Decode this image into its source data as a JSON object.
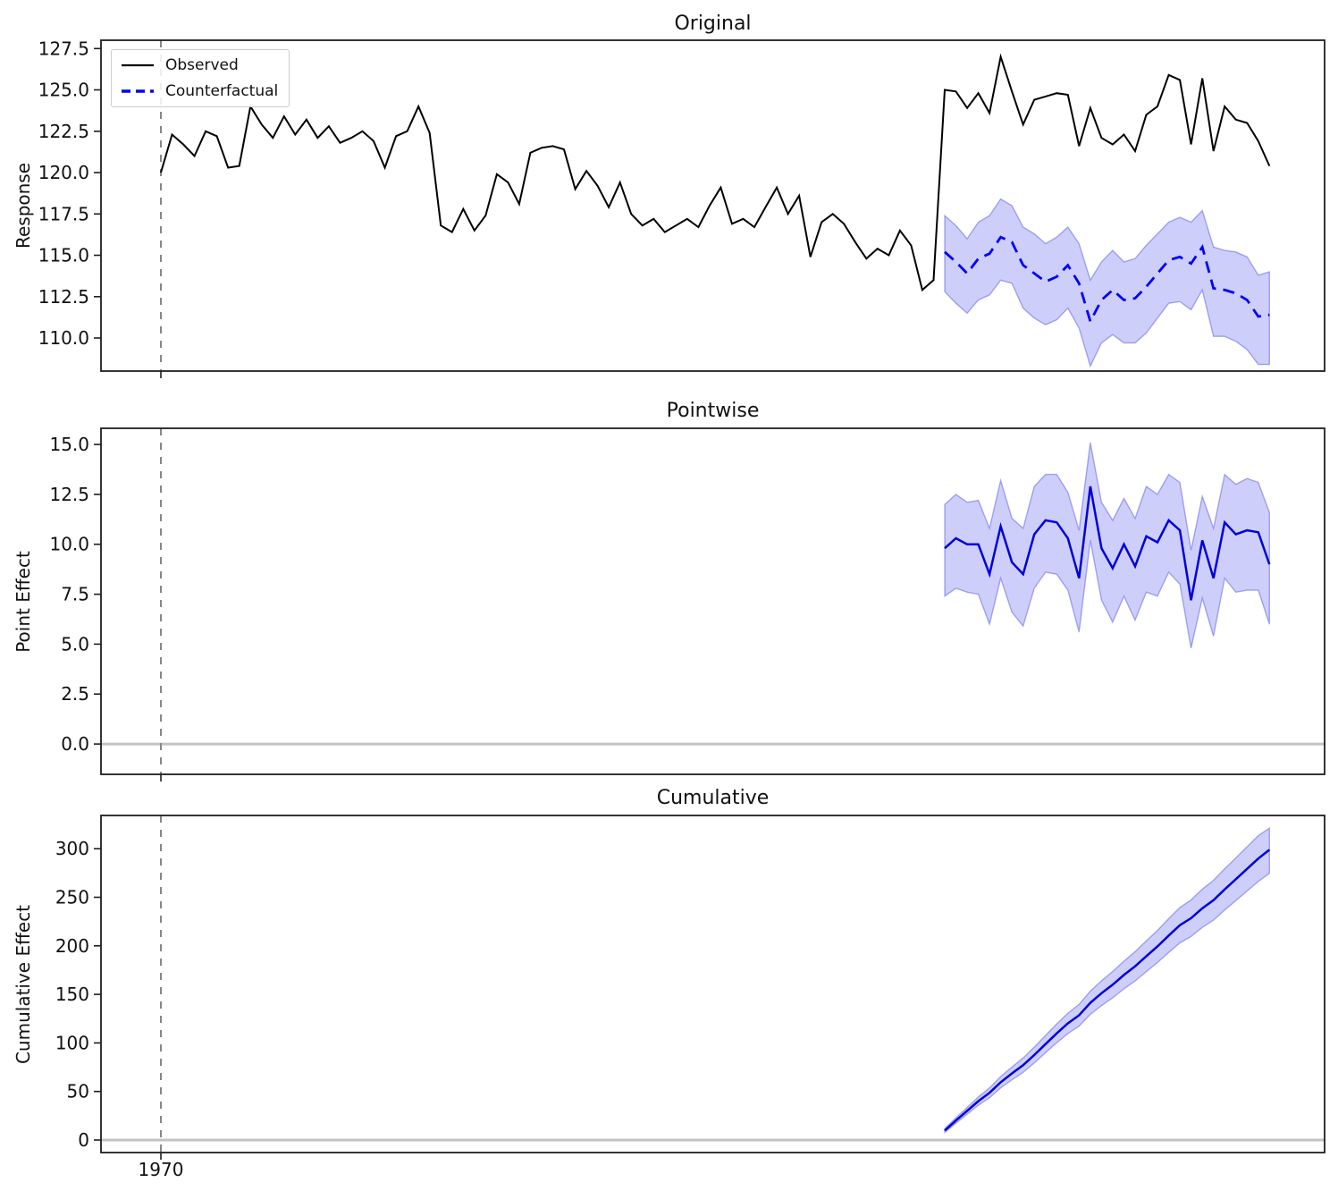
{
  "figure": {
    "x_tick_label": "1970",
    "background": "#ffffff",
    "legend": {
      "observed": "Observed",
      "counterfactual": "Counterfactual"
    },
    "colors": {
      "observed": "#000000",
      "counterfactual": "#0000ff",
      "effect_line": "#0000dd",
      "band_fill": "rgba(30,30,230,0.22)",
      "band_edge": "rgba(30,30,230,0.35)",
      "vline": "#878787",
      "zero_line": "#c3c3c3",
      "spine": "#1f1f1f",
      "tick_text": "#111111"
    }
  },
  "chart_data": [
    {
      "type": "line",
      "title": "Original",
      "ylabel": "Response",
      "ylim": [
        108.0,
        128.0
      ],
      "legend_position": "upper left",
      "grid": false,
      "zero_line": false,
      "vline_index": 0,
      "yticks": [
        {
          "v": 127.5,
          "label": "127.5"
        },
        {
          "v": 125.0,
          "label": "125.0"
        },
        {
          "v": 122.5,
          "label": "122.5"
        },
        {
          "v": 120.0,
          "label": "120.0"
        },
        {
          "v": 117.5,
          "label": "117.5"
        },
        {
          "v": 115.0,
          "label": "115.0"
        },
        {
          "v": 112.5,
          "label": "112.5"
        },
        {
          "v": 110.0,
          "label": "110.0"
        }
      ],
      "series": [
        {
          "name": "Observed",
          "style": "solid",
          "color": "#000000",
          "width": 2,
          "start_index": 0,
          "values": [
            120.0,
            122.3,
            121.7,
            121.0,
            122.5,
            122.2,
            120.3,
            120.4,
            124.0,
            122.9,
            122.1,
            123.4,
            122.3,
            123.2,
            122.1,
            122.8,
            121.8,
            122.1,
            122.5,
            121.9,
            120.3,
            122.2,
            122.5,
            124.0,
            122.4,
            116.8,
            116.4,
            117.8,
            116.5,
            117.4,
            119.9,
            119.4,
            118.1,
            121.2,
            121.5,
            121.6,
            121.4,
            119.0,
            120.1,
            119.2,
            117.9,
            119.4,
            117.5,
            116.8,
            117.2,
            116.4,
            116.8,
            117.2,
            116.7,
            118.0,
            119.1,
            116.9,
            117.2,
            116.7,
            117.9,
            119.1,
            117.5,
            118.6,
            114.9,
            117.0,
            117.5,
            116.9,
            115.8,
            114.8,
            115.4,
            115.0,
            116.5,
            115.6,
            112.9,
            113.5,
            125.0,
            124.9,
            123.9,
            124.8,
            123.6,
            127.0,
            124.9,
            122.9,
            124.4,
            124.6,
            124.8,
            124.7,
            121.6,
            123.9,
            122.1,
            121.7,
            122.3,
            121.3,
            123.5,
            124.0,
            125.9,
            125.6,
            121.7,
            125.7,
            121.3,
            124.0,
            123.2,
            123.0,
            121.9,
            120.4
          ]
        },
        {
          "name": "Counterfactual",
          "style": "dashed",
          "color": "#0000ff",
          "width": 2.8,
          "start_index": 70,
          "values": [
            115.2,
            114.6,
            113.9,
            114.8,
            115.1,
            116.1,
            115.8,
            114.4,
            113.9,
            113.4,
            113.7,
            114.4,
            113.3,
            111.0,
            112.3,
            112.9,
            112.3,
            112.4,
            113.1,
            113.9,
            114.7,
            114.9,
            114.5,
            115.5,
            113.0,
            112.9,
            112.7,
            112.3,
            111.3,
            111.4
          ]
        }
      ],
      "band": {
        "start_index": 70,
        "upper": [
          117.4,
          116.8,
          116.0,
          117.0,
          117.4,
          118.4,
          118.0,
          116.7,
          116.3,
          115.7,
          116.1,
          116.7,
          115.7,
          113.5,
          114.6,
          115.3,
          114.6,
          114.8,
          115.6,
          116.3,
          117.0,
          117.3,
          117.0,
          117.7,
          115.5,
          115.3,
          115.2,
          114.9,
          113.8,
          114.0
        ],
        "lower": [
          112.8,
          112.1,
          111.5,
          112.3,
          112.6,
          113.5,
          113.3,
          111.8,
          111.2,
          110.8,
          111.1,
          111.8,
          110.6,
          108.3,
          109.7,
          110.2,
          109.7,
          109.7,
          110.3,
          111.2,
          112.1,
          112.2,
          111.7,
          112.9,
          110.1,
          110.1,
          109.8,
          109.3,
          108.4,
          108.4
        ]
      }
    },
    {
      "type": "line",
      "title": "Pointwise",
      "ylabel": "Point Effect",
      "ylim": [
        -1.52,
        15.81
      ],
      "grid": false,
      "zero_line": true,
      "vline_index": 0,
      "yticks": [
        {
          "v": 15.0,
          "label": "15.0"
        },
        {
          "v": 12.5,
          "label": "12.5"
        },
        {
          "v": 10.0,
          "label": "10.0"
        },
        {
          "v": 7.5,
          "label": "7.5"
        },
        {
          "v": 5.0,
          "label": "5.0"
        },
        {
          "v": 2.5,
          "label": "2.5"
        },
        {
          "v": 0.0,
          "label": "0.0"
        }
      ],
      "series": [
        {
          "name": "Point effect",
          "style": "solid",
          "color": "#0000dd",
          "width": 2.5,
          "start_index": 70,
          "values": [
            9.8,
            10.3,
            10.0,
            10.0,
            8.5,
            10.9,
            9.1,
            8.5,
            10.5,
            11.2,
            11.1,
            10.3,
            8.3,
            12.9,
            9.8,
            8.8,
            10.0,
            8.9,
            10.4,
            10.1,
            11.2,
            10.7,
            7.2,
            10.2,
            8.3,
            11.1,
            10.5,
            10.7,
            10.6,
            9.0
          ]
        }
      ],
      "band": {
        "start_index": 70,
        "upper": [
          12.0,
          12.5,
          12.1,
          12.2,
          10.8,
          13.2,
          11.3,
          10.8,
          12.9,
          13.5,
          13.5,
          12.6,
          10.7,
          15.1,
          12.1,
          11.2,
          12.3,
          11.3,
          12.9,
          12.5,
          13.5,
          13.1,
          9.7,
          12.4,
          10.8,
          13.5,
          13.0,
          13.3,
          13.1,
          11.6
        ],
        "lower": [
          7.4,
          7.8,
          7.6,
          7.5,
          6.0,
          8.3,
          6.6,
          5.9,
          7.8,
          8.6,
          8.5,
          7.7,
          5.6,
          10.2,
          7.2,
          6.1,
          7.4,
          6.2,
          7.6,
          7.4,
          8.6,
          8.0,
          4.8,
          7.3,
          5.4,
          8.3,
          7.6,
          7.7,
          7.7,
          6.0
        ]
      }
    },
    {
      "type": "line",
      "title": "Cumulative",
      "ylabel": "Cumulative Effect",
      "ylim": [
        -12.9,
        334.3
      ],
      "grid": false,
      "zero_line": true,
      "vline_index": 0,
      "yticks": [
        {
          "v": 300,
          "label": "300"
        },
        {
          "v": 250,
          "label": "250"
        },
        {
          "v": 200,
          "label": "200"
        },
        {
          "v": 150,
          "label": "150"
        },
        {
          "v": 100,
          "label": "100"
        },
        {
          "v": 50,
          "label": "50"
        },
        {
          "v": 0,
          "label": "0"
        }
      ],
      "series": [
        {
          "name": "Cumulative effect",
          "style": "solid",
          "color": "#0000dd",
          "width": 2.5,
          "start_index": 70,
          "values": [
            9.8,
            20.1,
            30.1,
            40.1,
            48.6,
            59.5,
            68.6,
            77.1,
            87.6,
            98.8,
            109.9,
            120.2,
            128.5,
            141.4,
            151.2,
            160.0,
            170.0,
            178.9,
            189.3,
            199.4,
            210.6,
            221.3,
            228.5,
            238.7,
            247.0,
            258.1,
            268.6,
            279.3,
            289.9,
            298.9
          ]
        }
      ],
      "band": {
        "start_index": 70,
        "upper": [
          11.8,
          22.9,
          33.6,
          44.4,
          53.7,
          65.4,
          75.2,
          84.5,
          95.8,
          107.7,
          119.6,
          130.7,
          139.7,
          153.4,
          164.0,
          173.6,
          184.3,
          194.0,
          205.2,
          216.0,
          228.0,
          239.5,
          247.4,
          258.4,
          267.5,
          279.4,
          290.6,
          302.1,
          313.5,
          321.2
        ],
        "lower": [
          7.8,
          17.3,
          26.6,
          35.8,
          43.5,
          53.7,
          62.0,
          69.7,
          79.4,
          89.9,
          100.2,
          109.7,
          117.3,
          129.4,
          138.4,
          146.5,
          155.7,
          163.8,
          173.4,
          182.8,
          193.2,
          203.1,
          209.6,
          219.0,
          226.5,
          236.9,
          246.6,
          256.5,
          266.3,
          274.6
        ]
      }
    }
  ],
  "x_axis": {
    "tick_index": 0,
    "tick_label": "1970",
    "post_period_start_index": 70,
    "n_points": 100
  }
}
